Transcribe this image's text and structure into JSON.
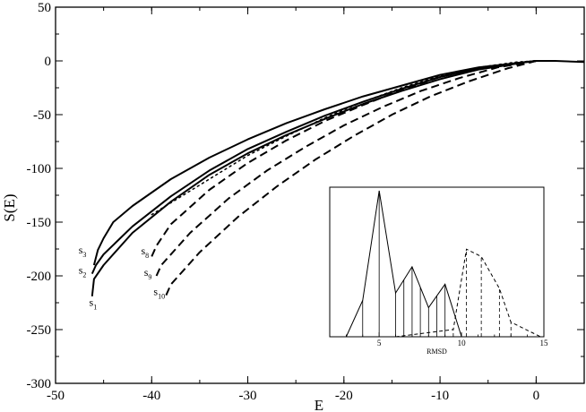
{
  "chart_data": {
    "type": "line",
    "xlabel": "E",
    "ylabel": "S(E)",
    "xlim": [
      -50,
      5
    ],
    "ylim": [
      -300,
      50
    ],
    "xticks": [
      -50,
      -40,
      -30,
      -20,
      -10,
      0
    ],
    "yticks": [
      -300,
      -250,
      -200,
      -150,
      -100,
      -50,
      0,
      50
    ],
    "grid": false,
    "legend": "none",
    "series": [
      {
        "name": "s1",
        "style": "solid",
        "x": [
          -46.2,
          -46.0,
          -45.0,
          -42.0,
          -38.0,
          -34.0,
          -30.0,
          -26.0,
          -22.0,
          -18.0,
          -14.0,
          -10.0,
          -6.0,
          -3.0,
          -1.0,
          0.0,
          2.0,
          5.0
        ],
        "y": [
          -219,
          -203,
          -190,
          -160,
          -131,
          -106,
          -86,
          -69,
          -54,
          -40,
          -28,
          -17,
          -8,
          -4,
          -1,
          0,
          0,
          -1
        ]
      },
      {
        "name": "s2",
        "style": "solid",
        "x": [
          -46.2,
          -45.8,
          -45.0,
          -42.0,
          -38.0,
          -34.0,
          -30.0,
          -26.0,
          -22.0,
          -18.0,
          -14.0,
          -10.0,
          -6.0,
          -2.0,
          0.0
        ],
        "y": [
          -198,
          -190,
          -180,
          -154,
          -126,
          -102,
          -82,
          -66,
          -51,
          -38,
          -26,
          -15,
          -7,
          -2,
          0
        ]
      },
      {
        "name": "s3",
        "style": "solid",
        "x": [
          -46.0,
          -45.6,
          -45.0,
          -44.0,
          -42.0,
          -38.0,
          -34.0,
          -30.0,
          -26.0,
          -22.0,
          -18.0,
          -14.0,
          -10.0,
          -6.0,
          -2.0,
          0.0
        ],
        "y": [
          -190,
          -176,
          -165,
          -150,
          -135,
          -110,
          -90,
          -73,
          -58,
          -45,
          -33,
          -23,
          -13,
          -6,
          -2,
          0
        ]
      },
      {
        "name": "",
        "style": "dotted",
        "x": [
          -40.0,
          -38.0,
          -34.0,
          -30.0,
          -26.0,
          -22.0,
          -18.0,
          -14.0,
          -10.0,
          -6.0,
          -2.0,
          0.0
        ],
        "y": [
          -143,
          -132,
          -110,
          -88,
          -70,
          -53,
          -38,
          -25,
          -14,
          -6,
          -1,
          0
        ]
      },
      {
        "name": "s8",
        "style": "dashed",
        "x": [
          -40.0,
          -39.5,
          -38.0,
          -34.0,
          -30.0,
          -26.0,
          -22.0,
          -18.0,
          -14.0,
          -10.0,
          -6.0,
          -2.0,
          0.0
        ],
        "y": [
          -182,
          -172,
          -152,
          -120,
          -95,
          -74,
          -56,
          -41,
          -27,
          -15,
          -7,
          -2,
          0
        ]
      },
      {
        "name": "s9",
        "style": "dashed",
        "x": [
          -39.5,
          -39.0,
          -36.0,
          -32.0,
          -28.0,
          -24.0,
          -20.0,
          -16.0,
          -12.0,
          -8.0,
          -4.0,
          0.0
        ],
        "y": [
          -200,
          -190,
          -160,
          -128,
          -102,
          -80,
          -60,
          -43,
          -28,
          -16,
          -6,
          0
        ]
      },
      {
        "name": "s10",
        "style": "dashed",
        "x": [
          -38.5,
          -38.0,
          -35.0,
          -31.0,
          -27.0,
          -23.0,
          -19.0,
          -15.0,
          -11.0,
          -7.0,
          -3.0,
          0.0
        ],
        "y": [
          -218,
          -208,
          -178,
          -145,
          -117,
          -92,
          -70,
          -50,
          -33,
          -19,
          -7,
          0
        ]
      }
    ],
    "curve_labels": [
      {
        "series": "s1",
        "base": "s",
        "sub": "1",
        "x": -46.5,
        "y": -228
      },
      {
        "series": "s2",
        "base": "s",
        "sub": "2",
        "x": -47.6,
        "y": -198
      },
      {
        "series": "s3",
        "base": "s",
        "sub": "3",
        "x": -47.6,
        "y": -179
      },
      {
        "series": "s8",
        "base": "s",
        "sub": "8",
        "x": -41.1,
        "y": -180
      },
      {
        "series": "s9",
        "base": "s",
        "sub": "9",
        "x": -40.8,
        "y": -200
      },
      {
        "series": "s10",
        "base": "s",
        "sub": "10",
        "x": -39.8,
        "y": -218
      }
    ],
    "inset": {
      "type": "histogram-polygon",
      "xlabel": "RMSD",
      "xlim": [
        2,
        15
      ],
      "ylim": [
        0,
        1
      ],
      "xticks": [
        5,
        10,
        15
      ],
      "series": [
        {
          "style": "solid",
          "x": [
            3.0,
            4.0,
            5.0,
            6.0,
            7.0,
            8.0,
            9.0,
            10.0
          ],
          "y": [
            0.0,
            0.25,
            1.0,
            0.3,
            0.48,
            0.2,
            0.36,
            0.0
          ],
          "drop_lines_x": [
            4.0,
            5.0,
            6.0,
            6.5,
            7.0,
            7.5,
            8.0,
            8.5,
            9.0
          ]
        },
        {
          "style": "dashed",
          "x": [
            6.0,
            9.5,
            10.3,
            11.2,
            12.3,
            13.0,
            14.8
          ],
          "y": [
            0.0,
            0.05,
            0.6,
            0.55,
            0.33,
            0.1,
            0.0
          ],
          "drop_lines_x": [
            9.5,
            10.3,
            11.2,
            12.3,
            13.0
          ]
        }
      ]
    }
  }
}
